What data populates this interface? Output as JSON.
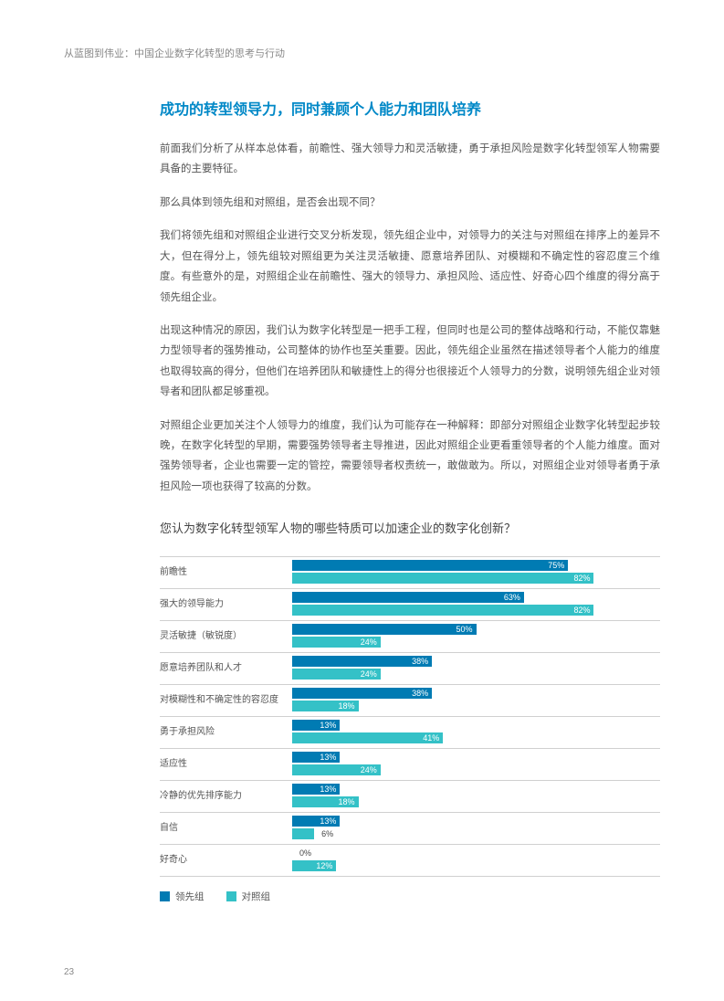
{
  "header": "从蓝图到伟业：中国企业数字化转型的思考与行动",
  "title": "成功的转型领导力，同时兼顾个人能力和团队培养",
  "paragraphs": [
    "前面我们分析了从样本总体看，前瞻性、强大领导力和灵活敏捷，勇于承担风险是数字化转型领军人物需要具备的主要特征。",
    "那么具体到领先组和对照组，是否会出现不同？",
    "我们将领先组和对照组企业进行交叉分析发现，领先组企业中，对领导力的关注与对照组在排序上的差异不大，但在得分上，领先组较对照组更为关注灵活敏捷、愿意培养团队、对模糊和不确定性的容忍度三个维度。有些意外的是，对照组企业在前瞻性、强大的领导力、承担风险、适应性、好奇心四个维度的得分高于领先组企业。",
    "出现这种情况的原因，我们认为数字化转型是一把手工程，但同时也是公司的整体战略和行动，不能仅靠魅力型领导者的强势推动，公司整体的协作也至关重要。因此，领先组企业虽然在描述领导者个人能力的维度也取得较高的得分，但他们在培养团队和敏捷性上的得分也很接近个人领导力的分数，说明领先组企业对领导者和团队都足够重视。",
    "对照组企业更加关注个人领导力的维度，我们认为可能存在一种解释：即部分对照组企业数字化转型起步较晚，在数字化转型的早期，需要强势领导者主导推进，因此对照组企业更看重领导者的个人能力维度。面对强势领导者，企业也需要一定的管控，需要领导者权责统一，敢做敢为。所以，对照组企业对领导者勇于承担风险一项也获得了较高的分数。"
  ],
  "chart": {
    "title": "您认为数字化转型领军人物的哪些特质可以加速企业的数字化创新？",
    "type": "bar",
    "max": 100,
    "colors": {
      "a": "#007bb3",
      "b": "#34c1c7"
    },
    "rows": [
      {
        "label": "前瞻性",
        "a": 75,
        "b": 82
      },
      {
        "label": "强大的领导能力",
        "a": 63,
        "b": 82
      },
      {
        "label": "灵活敏捷（敏锐度）",
        "a": 50,
        "b": 24
      },
      {
        "label": "愿意培养团队和人才",
        "a": 38,
        "b": 24
      },
      {
        "label": "对模糊性和不确定性的容忍度",
        "a": 38,
        "b": 18
      },
      {
        "label": "勇于承担风险",
        "a": 13,
        "b": 41
      },
      {
        "label": "适应性",
        "a": 13,
        "b": 24
      },
      {
        "label": "冷静的优先排序能力",
        "a": 13,
        "b": 18
      },
      {
        "label": "自信",
        "a": 13,
        "b": 6
      },
      {
        "label": "好奇心",
        "a": 0,
        "b": 12
      }
    ],
    "legend": {
      "a": "领先组",
      "b": "对照组"
    }
  },
  "pageNum": "23"
}
